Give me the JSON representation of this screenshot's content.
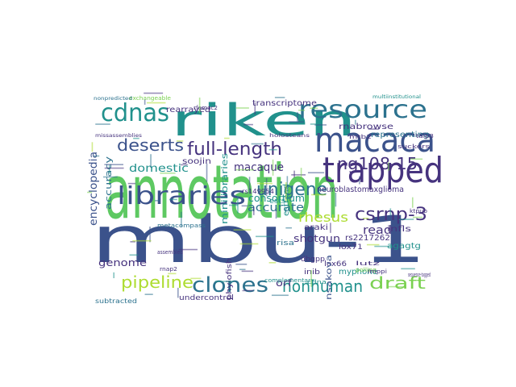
{
  "word_cloud": {
    "palette": {
      "background": "#ffffff",
      "dark_blue": "#3b528b",
      "indigo": "#46337e",
      "teal": "#21918c",
      "blue_teal": "#2c728e",
      "green": "#5ec962",
      "light_green": "#7ad151",
      "yellow_green": "#addc30",
      "aqua": "#28ae80"
    },
    "words": [
      {
        "text": "mbu-1",
        "color": "#3b528b"
      },
      {
        "text": "annotation",
        "color": "#5ec962"
      },
      {
        "text": "riken",
        "color": "#21918c"
      },
      {
        "text": "resource",
        "color": "#2c728e"
      },
      {
        "text": "macaca",
        "color": "#3b528b"
      },
      {
        "text": "trapped",
        "color": "#46337e"
      },
      {
        "text": "libraries",
        "color": "#3b528b"
      },
      {
        "text": "cdnas",
        "color": "#21918c"
      },
      {
        "text": "deserts",
        "color": "#3b528b"
      },
      {
        "text": "full-length",
        "color": "#46337e"
      },
      {
        "text": "ng108-15",
        "color": "#46337e"
      },
      {
        "text": "unigene",
        "color": "#2c728e"
      },
      {
        "text": "csrnp-3",
        "color": "#46337e"
      },
      {
        "text": "clones",
        "color": "#2c728e"
      },
      {
        "text": "pipeline",
        "color": "#addc30"
      },
      {
        "text": "nonhuman",
        "color": "#21918c"
      },
      {
        "text": "draft",
        "color": "#7ad151"
      },
      {
        "text": "macaque",
        "color": "#46337e"
      },
      {
        "text": "domestic",
        "color": "#21918c"
      },
      {
        "text": "consortium",
        "color": "#21918c"
      },
      {
        "text": "rhesus",
        "color": "#addc30"
      },
      {
        "text": "accurate",
        "color": "#2c728e"
      },
      {
        "text": "read",
        "color": "#46337e"
      },
      {
        "text": "orf",
        "color": "#46337e"
      },
      {
        "text": "genome",
        "color": "#46337e"
      },
      {
        "text": "encyclopedia",
        "color": "#3b528b"
      },
      {
        "text": "accuracy",
        "color": "#2c728e"
      },
      {
        "text": "shotgun",
        "color": "#46337e"
      },
      {
        "text": "soojin",
        "color": "#46337e"
      },
      {
        "text": "rearrayed",
        "color": "#46337e"
      },
      {
        "text": "transcriptome",
        "color": "#46337e"
      },
      {
        "text": "rnabrowse",
        "color": "#46337e"
      },
      {
        "text": "representing",
        "color": "#2c728e"
      },
      {
        "text": "minilibraries",
        "color": "#21918c"
      },
      {
        "text": "estrand",
        "color": "#21918c"
      },
      {
        "text": "araki",
        "color": "#46337e"
      },
      {
        "text": "infls",
        "color": "#46337e"
      },
      {
        "text": "neuroblastomaxglioma",
        "color": "#46337e"
      },
      {
        "text": "rs2217262",
        "color": "#46337e"
      },
      {
        "text": "agagtg",
        "color": "#21918c"
      },
      {
        "text": "myphone",
        "color": "#21918c"
      },
      {
        "text": "lox71",
        "color": "#46337e"
      },
      {
        "text": "lox66",
        "color": "#46337e"
      },
      {
        "text": "inib",
        "color": "#46337e"
      },
      {
        "text": "ests",
        "color": "#21918c"
      },
      {
        "text": "risa",
        "color": "#2c728e"
      },
      {
        "text": "phylofish",
        "color": "#46337e"
      },
      {
        "text": "undercontrol",
        "color": "#46337e"
      },
      {
        "text": "subtracted",
        "color": "#2c728e"
      },
      {
        "text": "exchangeable",
        "color": "#7ad151"
      },
      {
        "text": "nonpredicted",
        "color": "#2c728e"
      },
      {
        "text": "missassemblies",
        "color": "#46337e"
      },
      {
        "text": "multiinstitutional",
        "color": "#21918c"
      },
      {
        "text": "holosteans",
        "color": "#46337e"
      },
      {
        "text": "taip3",
        "color": "#46337e"
      },
      {
        "text": "suckers",
        "color": "#46337e"
      },
      {
        "text": "ktpub",
        "color": "#46337e"
      },
      {
        "text": "sequence-tagged",
        "color": "#46337e"
      },
      {
        "text": "rnap2",
        "color": "#46337e"
      },
      {
        "text": "assembled",
        "color": "#46337e"
      },
      {
        "text": "complementary",
        "color": "#21918c"
      },
      {
        "text": "metacompass",
        "color": "#2c728e"
      },
      {
        "text": "mtb2",
        "color": "#46337e"
      },
      {
        "text": "rfemac2",
        "color": "#46337e"
      },
      {
        "text": "polling",
        "color": "#7ad151"
      },
      {
        "text": "lutz",
        "color": "#46337e"
      },
      {
        "text": "cdna",
        "color": "#21918c"
      },
      {
        "text": "imppi",
        "color": "#46337e"
      },
      {
        "text": "dbgpp",
        "color": "#46337e"
      },
      {
        "text": "nsakova",
        "color": "#3b528b"
      },
      {
        "text": "rs149954",
        "color": "#46337e"
      }
    ]
  }
}
